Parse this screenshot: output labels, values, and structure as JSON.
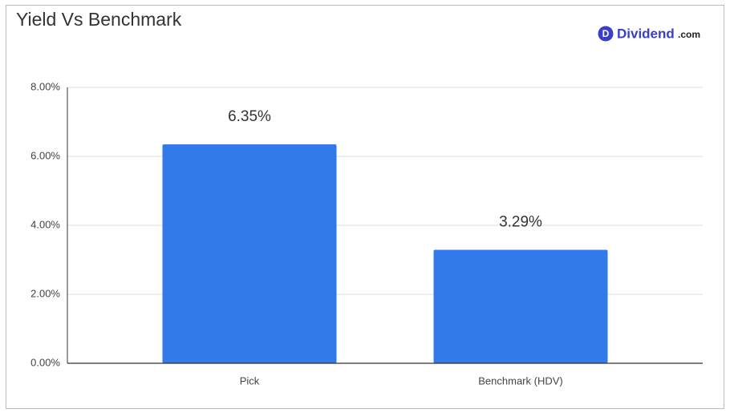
{
  "chart_data": {
    "type": "bar",
    "title": "Yield Vs Benchmark",
    "logo": {
      "mark": "D",
      "name": "Dividend",
      "suffix": ".com"
    },
    "categories": [
      "Pick",
      "Benchmark (HDV)"
    ],
    "values": [
      6.35,
      3.29
    ],
    "value_labels": [
      "6.35%",
      "3.29%"
    ],
    "color": "#3279ea",
    "ylim": [
      0,
      8
    ],
    "yticks": [
      {
        "value": 0,
        "label": "0.00%"
      },
      {
        "value": 2,
        "label": "2.00%"
      },
      {
        "value": 4,
        "label": "4.00%"
      },
      {
        "value": 6,
        "label": "6.00%"
      },
      {
        "value": 8,
        "label": "8.00%"
      }
    ],
    "grid": true
  }
}
